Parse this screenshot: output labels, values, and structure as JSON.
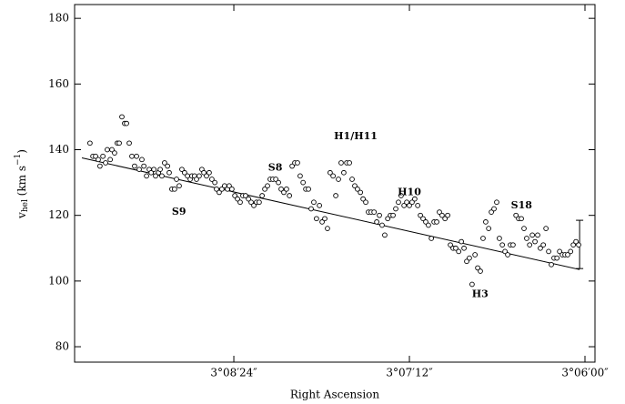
{
  "chart_data": {
    "type": "scatter",
    "xlabel": "Right Ascension",
    "ylabel": {
      "main": "v",
      "sub": "hel",
      "unit": " (km s",
      "sup": "−1",
      "close": ")"
    },
    "xlim": [
      11369.3,
      11155.9
    ],
    "ylim": [
      75.3,
      184.2
    ],
    "xticks": [
      {
        "value": 11304,
        "label": "3°08′24″"
      },
      {
        "value": 11232,
        "label": "3°07′12″"
      },
      {
        "value": 11160,
        "label": "3°06′00″"
      }
    ],
    "yticks": [
      80,
      100,
      120,
      140,
      160,
      180
    ],
    "marker_color": "#000000",
    "x": [
      11363.0,
      11361.8,
      11360.7,
      11359.6,
      11358.9,
      11357.7,
      11356.6,
      11355.9,
      11354.7,
      11354.0,
      11352.9,
      11351.8,
      11351.0,
      11349.9,
      11348.8,
      11348.0,
      11346.9,
      11345.8,
      11344.7,
      11343.9,
      11342.8,
      11341.7,
      11340.9,
      11339.8,
      11338.7,
      11337.9,
      11336.8,
      11336.1,
      11334.9,
      11334.2,
      11333.5,
      11332.4,
      11331.2,
      11330.5,
      11329.4,
      11328.3,
      11327.5,
      11326.4,
      11325.3,
      11324.2,
      11323.0,
      11321.9,
      11321.2,
      11320.1,
      11319.3,
      11318.2,
      11317.1,
      11316.3,
      11315.2,
      11314.1,
      11313.0,
      11311.8,
      11311.1,
      11310.0,
      11308.9,
      11307.8,
      11306.6,
      11305.9,
      11304.8,
      11303.6,
      11302.5,
      11301.4,
      11300.3,
      11299.2,
      11298.0,
      11296.9,
      11295.8,
      11294.7,
      11293.6,
      11292.4,
      11291.3,
      11290.2,
      11289.1,
      11288.0,
      11286.8,
      11285.7,
      11284.6,
      11283.5,
      11282.4,
      11281.2,
      11280.1,
      11279.0,
      11277.9,
      11276.8,
      11275.6,
      11274.5,
      11273.4,
      11272.3,
      11271.2,
      11270.1,
      11268.9,
      11267.8,
      11266.7,
      11265.6,
      11264.5,
      11263.3,
      11262.2,
      11261.1,
      11260.0,
      11258.9,
      11257.7,
      11256.6,
      11255.5,
      11254.4,
      11253.3,
      11252.1,
      11251.0,
      11249.9,
      11248.8,
      11247.7,
      11246.5,
      11245.4,
      11244.3,
      11243.2,
      11242.1,
      11240.9,
      11239.8,
      11238.7,
      11237.6,
      11236.5,
      11235.4,
      11234.2,
      11233.1,
      11232.0,
      11230.9,
      11229.8,
      11228.6,
      11227.5,
      11226.4,
      11225.3,
      11224.2,
      11223.0,
      11221.9,
      11220.8,
      11219.7,
      11218.6,
      11217.4,
      11216.3,
      11215.2,
      11214.1,
      11213.0,
      11211.8,
      11210.7,
      11209.6,
      11208.5,
      11207.4,
      11206.3,
      11205.1,
      11204.0,
      11202.9,
      11201.8,
      11200.7,
      11199.5,
      11198.4,
      11197.3,
      11196.2,
      11195.1,
      11193.9,
      11192.8,
      11191.7,
      11190.6,
      11189.5,
      11188.3,
      11187.2,
      11186.1,
      11185.0,
      11183.9,
      11182.7,
      11181.6,
      11180.5,
      11179.4,
      11178.3,
      11177.1,
      11176.0,
      11174.9,
      11173.8,
      11172.7,
      11171.5,
      11170.4,
      11169.3,
      11168.2,
      11167.1,
      11165.9,
      11164.8,
      11163.7,
      11162.6
    ],
    "values": [
      142,
      138,
      138,
      137,
      135,
      138,
      136,
      140,
      137,
      140,
      139,
      142,
      142,
      150,
      148,
      148,
      142,
      138,
      135,
      138,
      134,
      137,
      135,
      132,
      134,
      133,
      134,
      132,
      133,
      134,
      132,
      136,
      135,
      133,
      128,
      128,
      131,
      129,
      134,
      133,
      132,
      131,
      132,
      132,
      131,
      132,
      134,
      133,
      132,
      133,
      131,
      130,
      128,
      127,
      128,
      129,
      128,
      129,
      128,
      126,
      125,
      124,
      126,
      126,
      125,
      124,
      123,
      124,
      124,
      126,
      128,
      129,
      131,
      131,
      131,
      130,
      128,
      127,
      128,
      126,
      135,
      136,
      136,
      132,
      130,
      128,
      128,
      122,
      124,
      119,
      123,
      118,
      119,
      116,
      133,
      132,
      126,
      131,
      136,
      133,
      136,
      136,
      131,
      129,
      128,
      127,
      125,
      124,
      121,
      121,
      121,
      118,
      120,
      117,
      114,
      119,
      120,
      120,
      122,
      124,
      126,
      123,
      124,
      123,
      124,
      125,
      123,
      120,
      119,
      118,
      117,
      113,
      118,
      118,
      121,
      120,
      119,
      120,
      111,
      110,
      110,
      109,
      112,
      110,
      106,
      107,
      99,
      108,
      104,
      103,
      113,
      118,
      116,
      121,
      122,
      124,
      113,
      111,
      109,
      108,
      111,
      111,
      120,
      119,
      119,
      116,
      113,
      111,
      114,
      112,
      114,
      110,
      111,
      116,
      109,
      105,
      107,
      107,
      109,
      108,
      108,
      108,
      109,
      111,
      112,
      111
    ],
    "fit": {
      "x": [
        11366.3,
        11162.2
      ],
      "values": [
        137.5,
        103.5
      ]
    },
    "error_bar": {
      "x": 11162.2,
      "values": [
        103.8,
        118.5
      ]
    },
    "annotations": [
      {
        "text": "S9",
        "x": 11326.5,
        "y": 121
      },
      {
        "text": "S8",
        "x": 11287,
        "y": 134.5
      },
      {
        "text": "H1/H11",
        "x": 11254,
        "y": 144
      },
      {
        "text": "H10",
        "x": 11232,
        "y": 127
      },
      {
        "text": "S18",
        "x": 11186,
        "y": 123
      },
      {
        "text": "H3",
        "x": 11203,
        "y": 96
      }
    ]
  }
}
